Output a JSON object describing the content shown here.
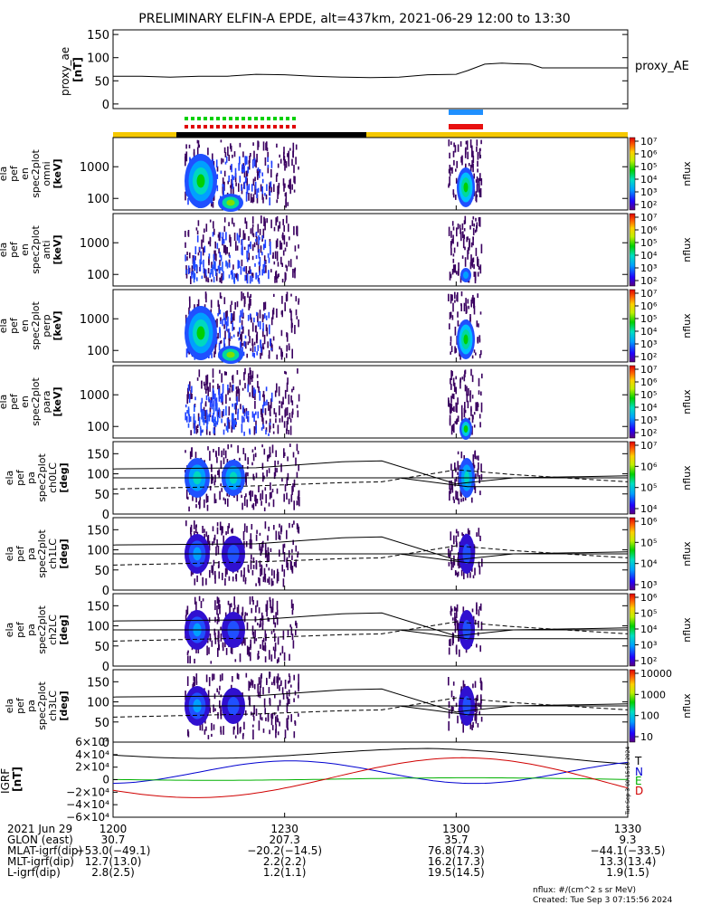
{
  "title": "PRELIMINARY ELFIN-A EPDE, alt=437km, 2021-06-29 12:00 to 13:30",
  "colors": {
    "yellow": "#f5c800",
    "black": "#000000",
    "green": "#00d000",
    "red": "#e00000",
    "blue": "#2090ff",
    "red2": "#e81010",
    "T": "#000000",
    "N": "#0000d0",
    "E": "#00b000",
    "D": "#d00000"
  },
  "chart_data": [
    {
      "type": "line",
      "panel": "proxy_ae",
      "ylabel_lines": [
        "proxy_ae",
        "[nT]"
      ],
      "legend": "proxy_AE",
      "yticks": [
        0,
        50,
        100,
        150
      ],
      "ylim": [
        -10,
        160
      ],
      "xlim": [
        0,
        90
      ],
      "x": [
        0,
        5,
        10,
        15,
        20,
        25,
        30,
        35,
        40,
        45,
        50,
        55,
        60,
        62,
        65,
        68,
        70,
        73,
        75,
        80,
        85,
        90
      ],
      "y": [
        60,
        60,
        58,
        60,
        60,
        64,
        63,
        60,
        58,
        57,
        58,
        63,
        64,
        72,
        86,
        88,
        87,
        86,
        78,
        78,
        78,
        78
      ]
    },
    {
      "type": "heatmap",
      "panel": "omni",
      "ylabel_lines": [
        "ela",
        "pef",
        "en",
        "spec2plot",
        "omni",
        "[keV]"
      ],
      "yticks": [
        "100",
        "1000"
      ],
      "colorbar": {
        "label": "nflux",
        "ticks": [
          "10²",
          "10³",
          "10⁴",
          "10⁵",
          "10⁶",
          "10⁷"
        ]
      }
    },
    {
      "type": "heatmap",
      "panel": "anti",
      "ylabel_lines": [
        "ela",
        "pef",
        "en",
        "spec2plot",
        "anti",
        "[keV]"
      ],
      "yticks": [
        "100",
        "1000"
      ],
      "colorbar": {
        "label": "nflux",
        "ticks": [
          "10²",
          "10³",
          "10⁴",
          "10⁵",
          "10⁶",
          "10⁷"
        ]
      }
    },
    {
      "type": "heatmap",
      "panel": "perp",
      "ylabel_lines": [
        "ela",
        "pef",
        "en",
        "spec2plot",
        "perp",
        "[keV]"
      ],
      "yticks": [
        "100",
        "1000"
      ],
      "colorbar": {
        "label": "nflux",
        "ticks": [
          "10²",
          "10³",
          "10⁴",
          "10⁵",
          "10⁶",
          "10⁷"
        ]
      }
    },
    {
      "type": "heatmap",
      "panel": "para",
      "ylabel_lines": [
        "ela",
        "pef",
        "en",
        "spec2plot",
        "para",
        "[keV]"
      ],
      "yticks": [
        "100",
        "1000"
      ],
      "colorbar": {
        "label": "nflux",
        "ticks": [
          "10²",
          "10³",
          "10⁴",
          "10⁵",
          "10⁶",
          "10⁷"
        ]
      }
    },
    {
      "type": "heatmap",
      "panel": "ch0LC",
      "ylabel_lines": [
        "ela",
        "pef",
        "pa",
        "spec2plot",
        "ch0LC",
        "[deg]"
      ],
      "yticks": [
        "0",
        "50",
        "100",
        "150"
      ],
      "colorbar": {
        "label": "nflux",
        "ticks": [
          "10⁴",
          "10⁵",
          "10⁶",
          "10⁷"
        ]
      }
    },
    {
      "type": "heatmap",
      "panel": "ch1LC",
      "ylabel_lines": [
        "ela",
        "pef",
        "pa",
        "spec2plot",
        "ch1LC",
        "[deg]"
      ],
      "yticks": [
        "0",
        "50",
        "100",
        "150"
      ],
      "colorbar": {
        "label": "nflux",
        "ticks": [
          "10³",
          "10⁴",
          "10⁵",
          "10⁶"
        ]
      }
    },
    {
      "type": "heatmap",
      "panel": "ch2LC",
      "ylabel_lines": [
        "ela",
        "pef",
        "pa",
        "spec2plot",
        "ch2LC",
        "[deg]"
      ],
      "yticks": [
        "0",
        "50",
        "100",
        "150"
      ],
      "colorbar": {
        "label": "nflux",
        "ticks": [
          "10²",
          "10³",
          "10⁴",
          "10⁵",
          "10⁶"
        ]
      }
    },
    {
      "type": "heatmap",
      "panel": "ch3LC",
      "ylabel_lines": [
        "ela",
        "pef",
        "pa",
        "spec2plot",
        "ch3LC",
        "[deg]"
      ],
      "yticks": [
        "0",
        "50",
        "100",
        "150"
      ],
      "colorbar": {
        "label": "nflux",
        "ticks": [
          "10",
          "100",
          "1000",
          "10000"
        ]
      }
    },
    {
      "type": "line",
      "panel": "IGRF",
      "ylabel_lines": [
        "IGRF",
        "[nT]"
      ],
      "yticks": [
        "−6×10⁴",
        "−4×10⁴",
        "−2×10⁴",
        "0",
        "2×10⁴",
        "4×10⁴",
        "6×10⁴"
      ],
      "ylim": [
        -60000,
        60000
      ],
      "xlim": [
        0,
        90
      ],
      "legend": [
        "T",
        "N",
        "E",
        "D"
      ],
      "side_text": "Tue Sep  3 00:15:56 2024"
    }
  ],
  "xaxis": {
    "rows": [
      {
        "label": "2021 Jun 29",
        "values": [
          "1200",
          "1230",
          "1300",
          "1330"
        ]
      },
      {
        "label": "GLON (east)",
        "values": [
          "30.7",
          "207.3",
          "35.7",
          "9.3"
        ]
      },
      {
        "label": "MLAT-igrf(dip)",
        "values": [
          "−53.0(−49.1)",
          "−20.2(−14.5)",
          "76.8(74.3)",
          "−44.1(−33.5)"
        ]
      },
      {
        "label": "MLT-igrf(dip)",
        "values": [
          "12.7(13.0)",
          "2.2(2.2)",
          "16.2(17.3)",
          "13.3(13.4)"
        ]
      },
      {
        "label": "L-igrf(dip)",
        "values": [
          "2.8(2.5)",
          "1.2(1.1)",
          "19.5(14.5)",
          "1.9(1.5)"
        ]
      }
    ]
  },
  "footer": {
    "line1": "nflux: #/(cm^2 s sr MeV)",
    "line2": "Created: Tue Sep  3 07:15:56 2024"
  }
}
